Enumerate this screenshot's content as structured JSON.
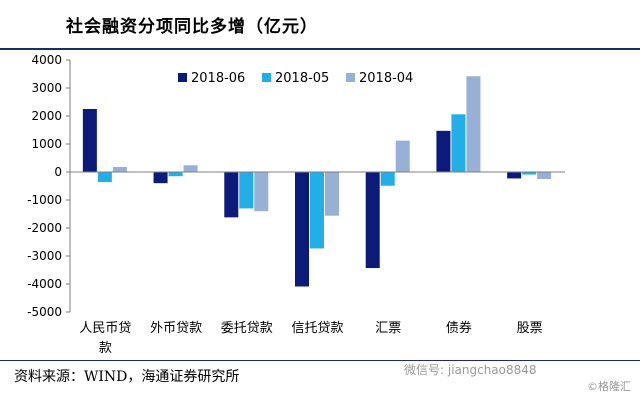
{
  "title": "社会融资分项同比多增（亿元）",
  "source": "资料来源：WIND，海通证券研究所",
  "watermark": "微信号: jiangchao8848",
  "watermark2": "©格隆汇",
  "colors": {
    "2018-06": "#0c1a7a",
    "2018-05": "#22aee6",
    "2018-04": "#98b0d6",
    "zero_line": "#7f7f7f",
    "rule": "#1f2a6b"
  },
  "chart_data": {
    "type": "bar",
    "categories": [
      "人民币贷款",
      "外币贷款",
      "委托贷款",
      "信托贷款",
      "汇票",
      "债券",
      "股票"
    ],
    "series": [
      {
        "name": "2018-06",
        "values": [
          2250,
          -400,
          -1620,
          -4090,
          -3430,
          1470,
          -230
        ]
      },
      {
        "name": "2018-05",
        "values": [
          -360,
          -150,
          -1300,
          -2730,
          -490,
          2060,
          -90
        ]
      },
      {
        "name": "2018-04",
        "values": [
          180,
          240,
          -1400,
          -1560,
          1120,
          3420,
          -250
        ]
      }
    ],
    "ylim": [
      -5000,
      4000
    ],
    "yticks": [
      4000,
      3000,
      2000,
      1000,
      0,
      -1000,
      -2000,
      -3000,
      -4000,
      -5000
    ],
    "legend_position": "top-center",
    "grid": false
  }
}
